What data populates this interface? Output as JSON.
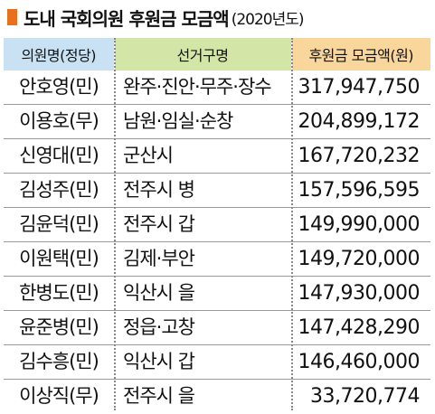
{
  "title": {
    "main": "도내 국회의원 후원금 모금액",
    "sub": "(2020년도)"
  },
  "colors": {
    "marker": "#e8701e",
    "header_col1": "#c9e2f3",
    "header_col2": "#d3e6a8",
    "header_col3": "#f9d79c"
  },
  "table": {
    "headers": [
      "의원명(정당)",
      "선거구명",
      "후원금 모금액(원)"
    ],
    "rows": [
      {
        "name": "안호영(민)",
        "district": "완주·진안·무주·장수",
        "amount": "317,947,750"
      },
      {
        "name": "이용호(무)",
        "district": "남원·임실·순창",
        "amount": "204,899,172"
      },
      {
        "name": "신영대(민)",
        "district": "군산시",
        "amount": "167,720,232"
      },
      {
        "name": "김성주(민)",
        "district": "전주시 병",
        "amount": "157,596,595"
      },
      {
        "name": "김윤덕(민)",
        "district": "전주시 갑",
        "amount": "149,990,000"
      },
      {
        "name": "이원택(민)",
        "district": "김제·부안",
        "amount": "149,720,000"
      },
      {
        "name": "한병도(민)",
        "district": "익산시 을",
        "amount": "147,930,000"
      },
      {
        "name": "윤준병(민)",
        "district": "정읍·고창",
        "amount": "147,428,290"
      },
      {
        "name": "김수흥(민)",
        "district": "익산시 갑",
        "amount": "146,460,000"
      },
      {
        "name": "이상직(무)",
        "district": "전주시 을",
        "amount": "33,720,774"
      }
    ]
  }
}
